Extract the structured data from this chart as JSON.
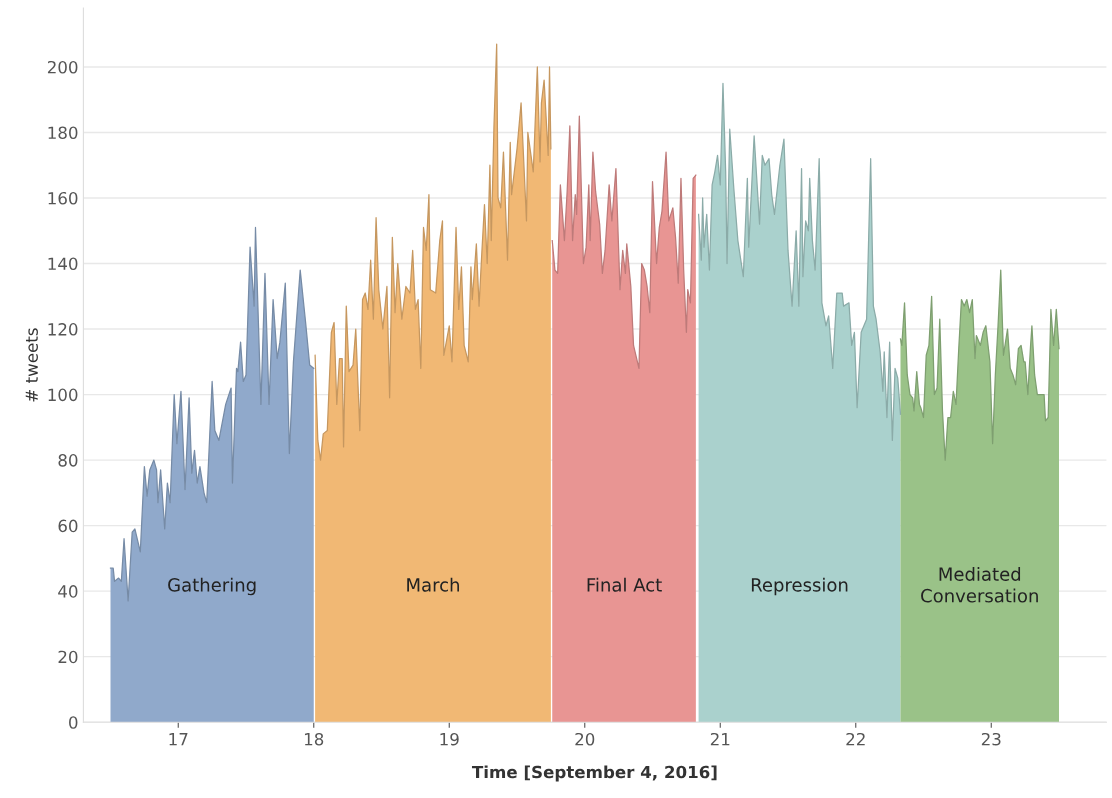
{
  "chart_data": {
    "type": "area",
    "xlabel": "Time [September 4, 2016]",
    "ylabel": "# tweets",
    "xlim": [
      16.3,
      23.85
    ],
    "ylim": [
      0,
      218
    ],
    "xticks": [
      17,
      18,
      19,
      20,
      21,
      22,
      23
    ],
    "yticks": [
      0,
      20,
      40,
      60,
      80,
      100,
      120,
      140,
      160,
      180,
      200
    ],
    "grid": "y",
    "legend": false,
    "series": [
      {
        "name": "Gathering",
        "color": "#90a9cb",
        "x": [
          16.5,
          16.52,
          16.53,
          16.56,
          16.58,
          16.6,
          16.63,
          16.66,
          16.68,
          16.72,
          16.75,
          16.77,
          16.79,
          16.82,
          16.84,
          16.85,
          16.87,
          16.9,
          16.92,
          16.94,
          16.97,
          16.99,
          17.02,
          17.05,
          17.08,
          17.1,
          17.12,
          17.14,
          17.16,
          17.19,
          17.21,
          17.25,
          17.27,
          17.3,
          17.35,
          17.39,
          17.4,
          17.43,
          17.44,
          17.46,
          17.48,
          17.5,
          17.53,
          17.56,
          17.57,
          17.61,
          17.64,
          17.67,
          17.7,
          17.73,
          17.75,
          17.79,
          17.82,
          17.85,
          17.9,
          17.94,
          17.97,
          18.0
        ],
        "values": [
          47,
          47,
          43,
          44,
          43,
          56,
          37,
          58,
          59,
          52,
          78,
          69,
          77,
          80,
          77,
          67,
          77,
          59,
          73,
          67,
          100,
          85,
          101,
          71,
          99,
          76,
          83,
          73,
          78,
          70,
          67,
          104,
          89,
          86,
          97,
          102,
          73,
          108,
          107,
          116,
          104,
          106,
          145,
          127,
          151,
          97,
          137,
          97,
          129,
          111,
          116,
          134,
          82,
          110,
          138,
          122,
          109,
          108
        ]
      },
      {
        "name": "March",
        "color": "#f1b874",
        "x": [
          18.01,
          18.03,
          18.05,
          18.07,
          18.1,
          18.13,
          18.15,
          18.17,
          18.19,
          18.21,
          18.22,
          18.24,
          18.26,
          18.29,
          18.31,
          18.34,
          18.36,
          18.38,
          18.4,
          18.42,
          18.44,
          18.46,
          18.48,
          18.51,
          18.54,
          18.56,
          18.58,
          18.6,
          18.62,
          18.65,
          18.68,
          18.71,
          18.73,
          18.75,
          18.77,
          18.79,
          18.81,
          18.83,
          18.85,
          18.86,
          18.9,
          18.93,
          18.95,
          18.96,
          19.0,
          19.02,
          19.05,
          19.07,
          19.09,
          19.11,
          19.14,
          19.16,
          19.17,
          19.2,
          19.22,
          19.24,
          19.26,
          19.28,
          19.3,
          19.31,
          19.33,
          19.35,
          19.36,
          19.38,
          19.4,
          19.43,
          19.45,
          19.46,
          19.5,
          19.53,
          19.57,
          19.58,
          19.62,
          19.65,
          19.67,
          19.68,
          19.7,
          19.73,
          19.74,
          19.75
        ],
        "values": [
          112,
          86,
          80,
          88,
          89,
          119,
          122,
          97,
          111,
          111,
          84,
          127,
          107,
          109,
          120,
          89,
          129,
          131,
          126,
          141,
          123,
          154,
          132,
          120,
          133,
          99,
          148,
          125,
          140,
          123,
          133,
          131,
          144,
          126,
          129,
          108,
          151,
          144,
          161,
          132,
          131,
          147,
          153,
          112,
          121,
          110,
          151,
          126,
          139,
          115,
          110,
          139,
          129,
          146,
          127,
          143,
          158,
          140,
          170,
          147,
          182,
          207,
          160,
          157,
          174,
          141,
          177,
          161,
          175,
          189,
          153,
          180,
          168,
          200,
          171,
          189,
          196,
          173,
          200,
          175
        ]
      },
      {
        "name": "Final Act",
        "color": "#e89593",
        "x": [
          19.76,
          19.78,
          19.8,
          19.82,
          19.85,
          19.87,
          19.89,
          19.91,
          19.93,
          19.94,
          19.96,
          19.99,
          20.01,
          20.03,
          20.04,
          20.06,
          20.08,
          20.11,
          20.13,
          20.15,
          20.18,
          20.2,
          20.23,
          20.26,
          20.28,
          20.3,
          20.31,
          20.34,
          20.36,
          20.4,
          20.42,
          20.44,
          20.46,
          20.48,
          20.5,
          20.53,
          20.55,
          20.57,
          20.6,
          20.62,
          20.65,
          20.67,
          20.69,
          20.71,
          20.73,
          20.75,
          20.76,
          20.78,
          20.8,
          20.82
        ],
        "values": [
          147,
          138,
          137,
          164,
          147,
          162,
          182,
          147,
          161,
          155,
          185,
          140,
          145,
          164,
          147,
          174,
          162,
          152,
          137,
          144,
          164,
          153,
          169,
          132,
          144,
          137,
          146,
          133,
          115,
          108,
          140,
          138,
          133,
          125,
          165,
          140,
          151,
          156,
          174,
          153,
          157,
          148,
          134,
          166,
          138,
          119,
          132,
          128,
          166,
          167
        ]
      },
      {
        "name": "Repression",
        "color": "#aad1cd",
        "x": [
          20.84,
          20.86,
          20.87,
          20.88,
          20.9,
          20.92,
          20.94,
          20.96,
          20.98,
          21.0,
          21.02,
          21.04,
          21.05,
          21.07,
          21.1,
          21.13,
          21.17,
          21.2,
          21.21,
          21.25,
          21.29,
          21.31,
          21.33,
          21.36,
          21.38,
          21.4,
          21.44,
          21.47,
          21.5,
          21.53,
          21.56,
          21.58,
          21.6,
          21.61,
          21.63,
          21.65,
          21.66,
          21.68,
          21.7,
          21.73,
          21.75,
          21.78,
          21.8,
          21.83,
          21.86,
          21.9,
          21.91,
          21.95,
          21.97,
          21.99,
          22.01,
          22.04,
          22.08,
          22.11,
          22.13,
          22.15,
          22.18,
          22.2,
          22.21,
          22.23,
          22.25,
          22.27,
          22.29,
          22.31,
          22.33
        ],
        "values": [
          155,
          141,
          160,
          145,
          155,
          138,
          164,
          168,
          173,
          164,
          195,
          168,
          140,
          181,
          163,
          147,
          136,
          166,
          145,
          179,
          152,
          173,
          170,
          172,
          161,
          155,
          170,
          178,
          144,
          127,
          150,
          127,
          169,
          136,
          153,
          150,
          166,
          147,
          138,
          172,
          128,
          121,
          124,
          108,
          131,
          131,
          127,
          128,
          115,
          119,
          96,
          119,
          123,
          172,
          127,
          123,
          113,
          101,
          113,
          93,
          116,
          86,
          108,
          105,
          94
        ]
      },
      {
        "name": "Mediated Conversation",
        "color": "#9ac288",
        "x": [
          22.33,
          22.34,
          22.36,
          22.38,
          22.4,
          22.42,
          22.43,
          22.45,
          22.47,
          22.48,
          22.5,
          22.52,
          22.54,
          22.56,
          22.58,
          22.6,
          22.62,
          22.64,
          22.66,
          22.68,
          22.7,
          22.72,
          22.74,
          22.76,
          22.78,
          22.8,
          22.82,
          22.84,
          22.86,
          22.88,
          22.89,
          22.92,
          22.94,
          22.96,
          22.99,
          23.01,
          23.03,
          23.05,
          23.07,
          23.09,
          23.12,
          23.14,
          23.16,
          23.18,
          23.2,
          23.22,
          23.24,
          23.25,
          23.27,
          23.29,
          23.3,
          23.32,
          23.34,
          23.37,
          23.39,
          23.4,
          23.42,
          23.44,
          23.46,
          23.48,
          23.5
        ],
        "values": [
          117,
          115,
          128,
          106,
          100,
          99,
          95,
          107,
          97,
          96,
          93,
          112,
          115,
          130,
          100,
          102,
          123,
          95,
          80,
          93,
          93,
          101,
          97,
          114,
          129,
          127,
          129,
          125,
          129,
          111,
          118,
          115,
          119,
          121,
          110,
          85,
          106,
          121,
          138,
          112,
          120,
          108,
          106,
          103,
          114,
          115,
          110,
          110,
          100,
          115,
          121,
          106,
          100,
          100,
          100,
          92,
          93,
          126,
          115,
          126,
          114
        ]
      }
    ]
  }
}
